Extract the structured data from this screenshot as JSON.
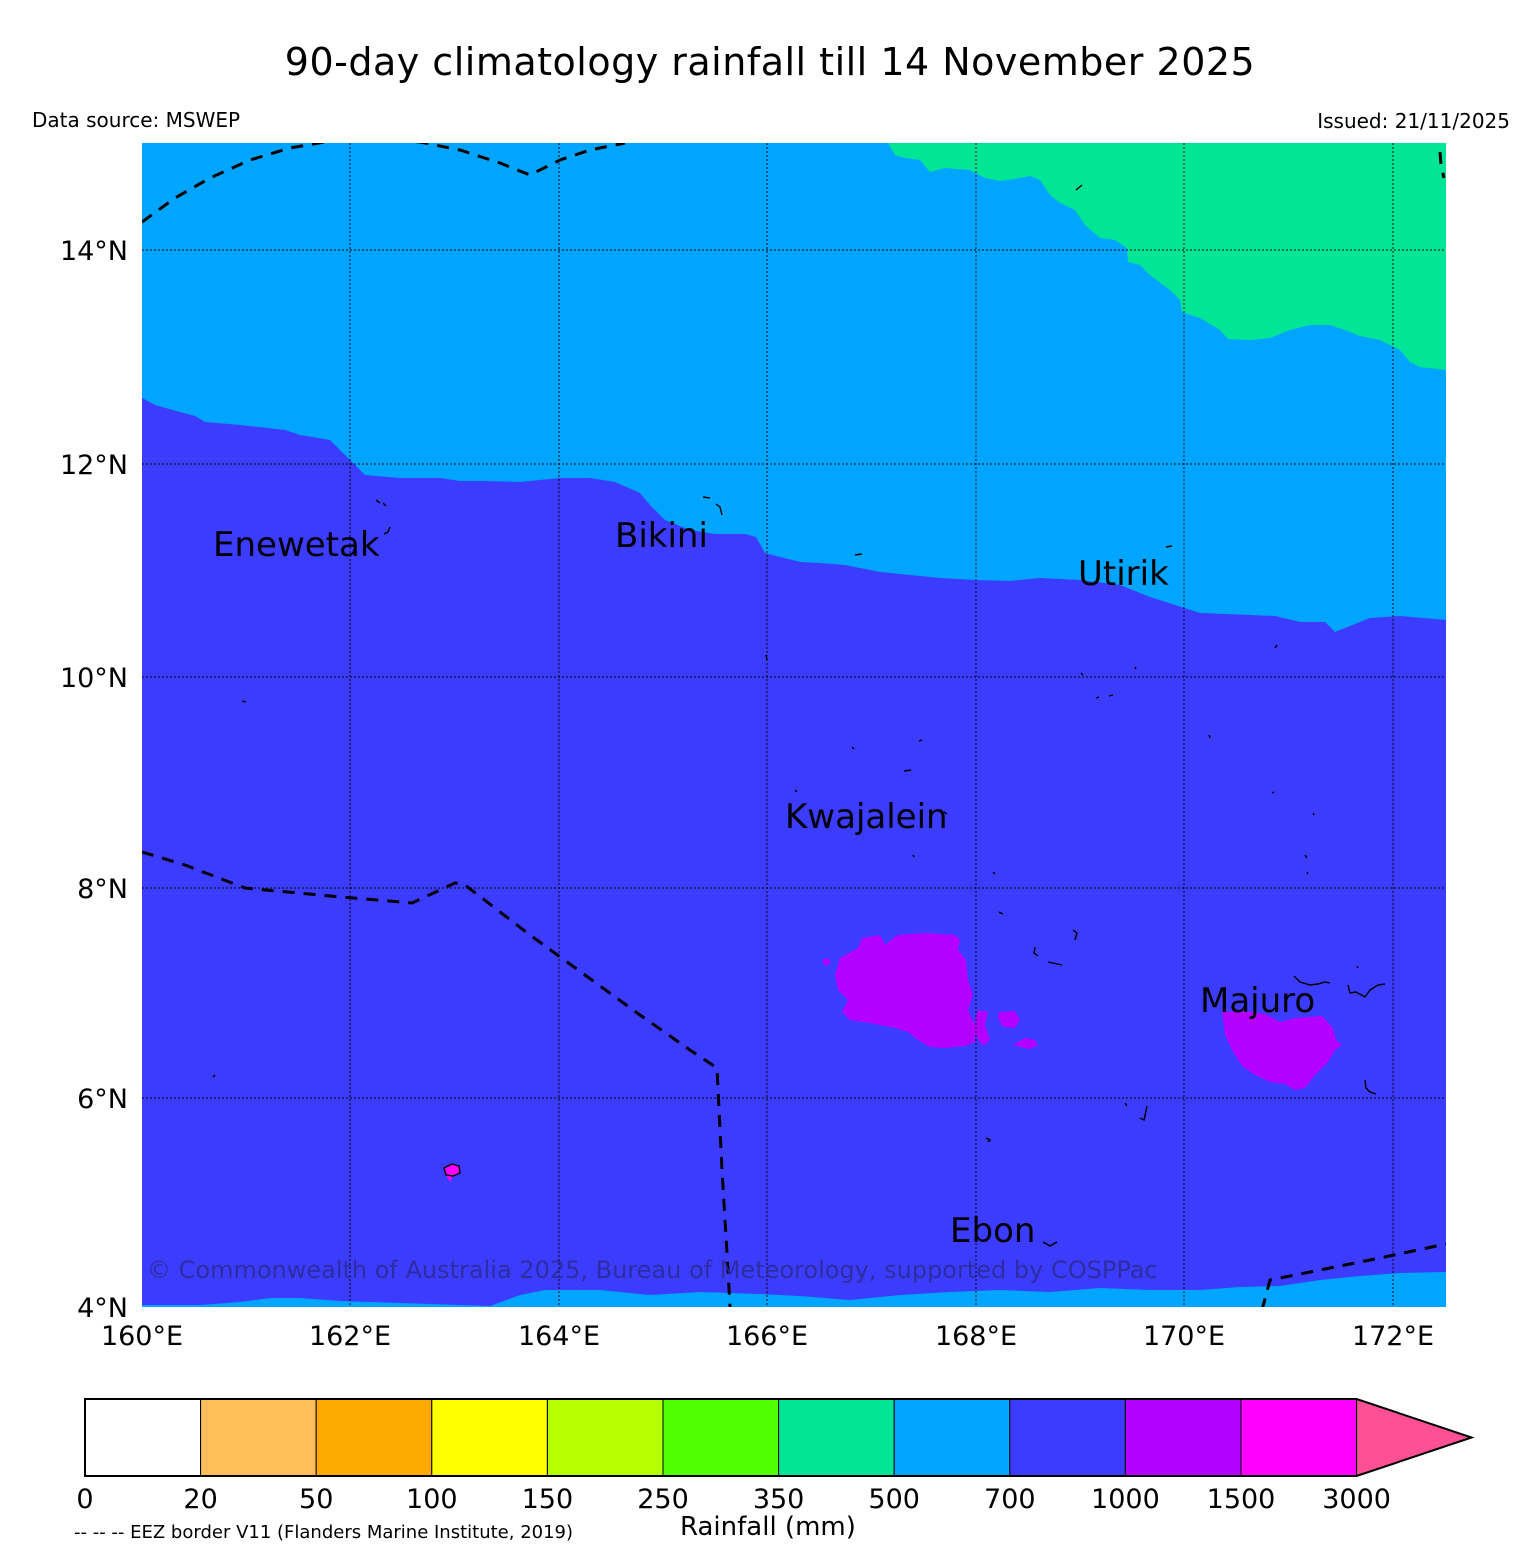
{
  "title": "90-day climatology rainfall till 14 November 2025",
  "data_source": "Data source: MSWEP",
  "issued": "Issued: 21/11/2025",
  "copyright": "© Commonwealth of Australia 2025, Bureau of Meteorology, supported by COSPPac",
  "eez_note": "-- -- -- EEZ border V11 (Flanders Marine Institute, 2019)",
  "lat_labels": [
    "14°N",
    "12°N",
    "10°N",
    "8°N",
    "6°N",
    "4°N"
  ],
  "lon_labels": [
    "160°E",
    "162°E",
    "164°E",
    "166°E",
    "168°E",
    "170°E",
    "172°E"
  ],
  "places": [
    "Enewetak",
    "Bikini",
    "Utirik",
    "Kwajalein",
    "Majuro",
    "Ebon"
  ],
  "colorbar": {
    "label": "Rainfall (mm)",
    "ticks": [
      "0",
      "20",
      "50",
      "100",
      "150",
      "250",
      "350",
      "500",
      "700",
      "1000",
      "1500",
      "3000"
    ],
    "colors": [
      "#ffffff",
      "#ffbe5a",
      "#ffaa00",
      "#ffff00",
      "#b4ff00",
      "#50ff00",
      "#00e696",
      "#00a5ff",
      "#3c3cff",
      "#b400ff",
      "#ff00ff",
      "#ff5096"
    ]
  },
  "zone_colors": {
    "zone_350_500": "#00e696",
    "zone_500_700": "#00a5ff",
    "zone_700_1000": "#3c3cff",
    "zone_1000_1500": "#b400ff",
    "zone_1500_3000": "#ff00ff"
  }
}
